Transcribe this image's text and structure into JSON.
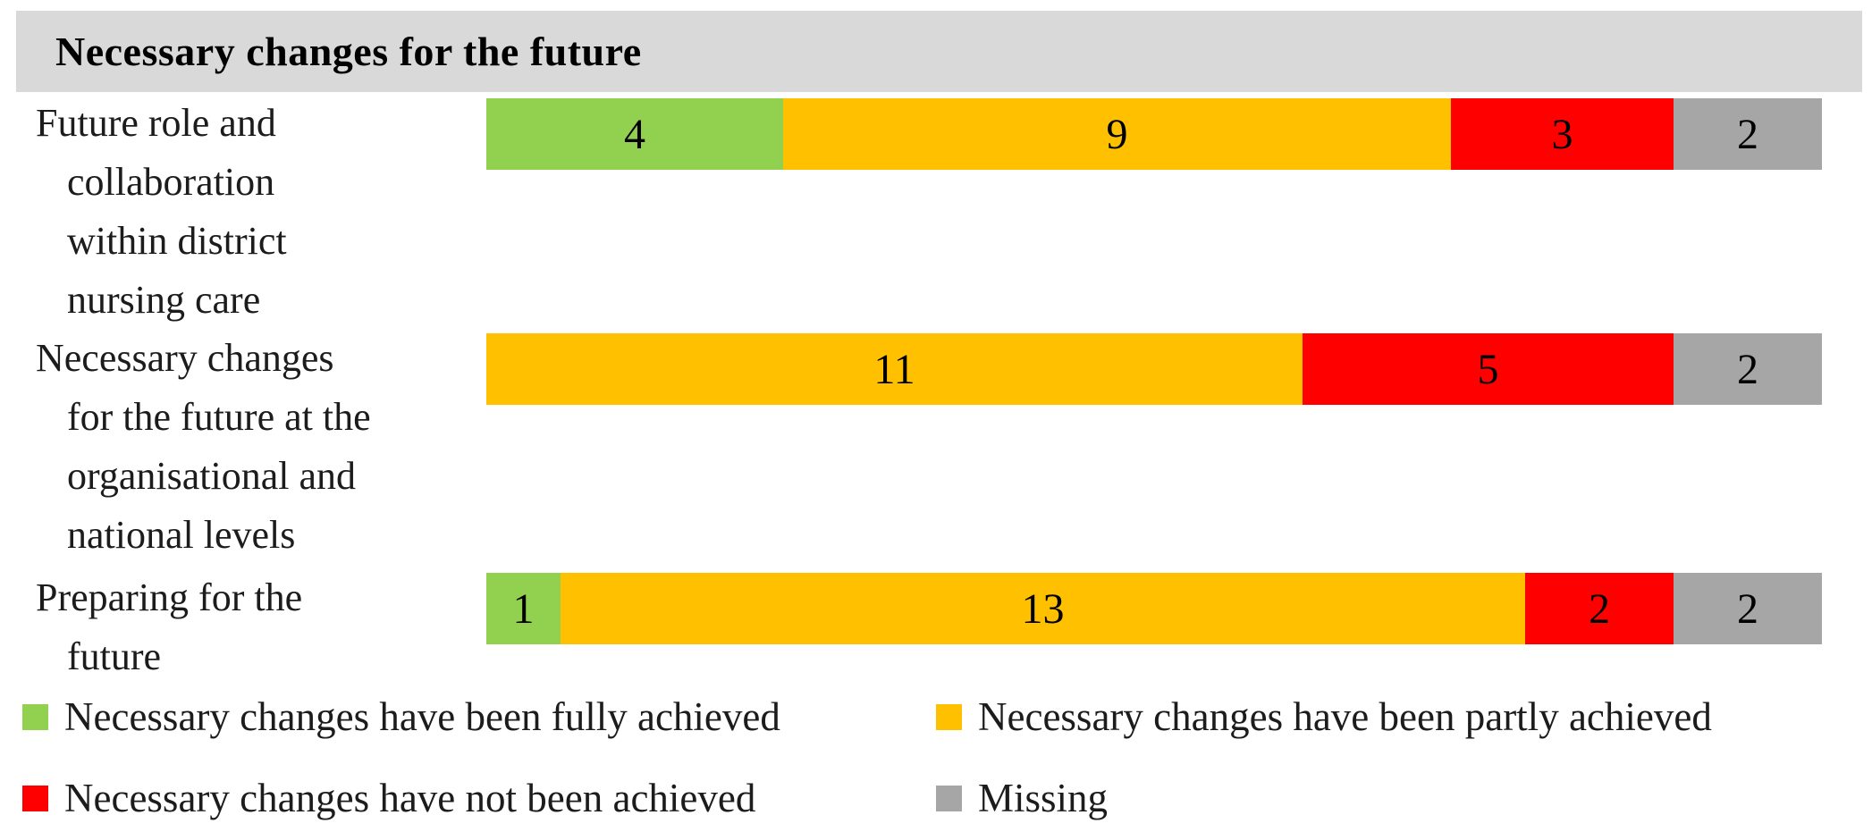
{
  "chart_data": {
    "type": "bar",
    "orientation": "horizontal",
    "stacked": true,
    "title": "Necessary changes for the future",
    "title_background": "#D9D9D9",
    "categories": [
      "Future role and collaboration within district nursing care",
      "Necessary changes for the future at the organisational and national levels",
      "Preparing for the future"
    ],
    "category_label_lines": [
      [
        "Future role and",
        "collaboration",
        "within district",
        "nursing care"
      ],
      [
        "Necessary changes",
        "for the future at the",
        "organisational and",
        "national levels"
      ],
      [
        "Preparing for the",
        "future"
      ]
    ],
    "series": [
      {
        "name": "Necessary changes have been fully achieved",
        "color": "#92D050",
        "values": [
          4,
          0,
          1
        ]
      },
      {
        "name": "Necessary changes have been partly achieved",
        "color": "#FFC000",
        "values": [
          9,
          11,
          13
        ]
      },
      {
        "name": "Necessary changes have not been achieved",
        "color": "#FF0000",
        "values": [
          3,
          5,
          2
        ]
      },
      {
        "name": "Missing",
        "color": "#A6A6A6",
        "values": [
          2,
          2,
          2
        ]
      }
    ],
    "bar_totals": [
      18,
      18,
      18
    ],
    "axis_max": 18,
    "data_labels_shown": true,
    "grid": false,
    "legend_position": "bottom"
  }
}
